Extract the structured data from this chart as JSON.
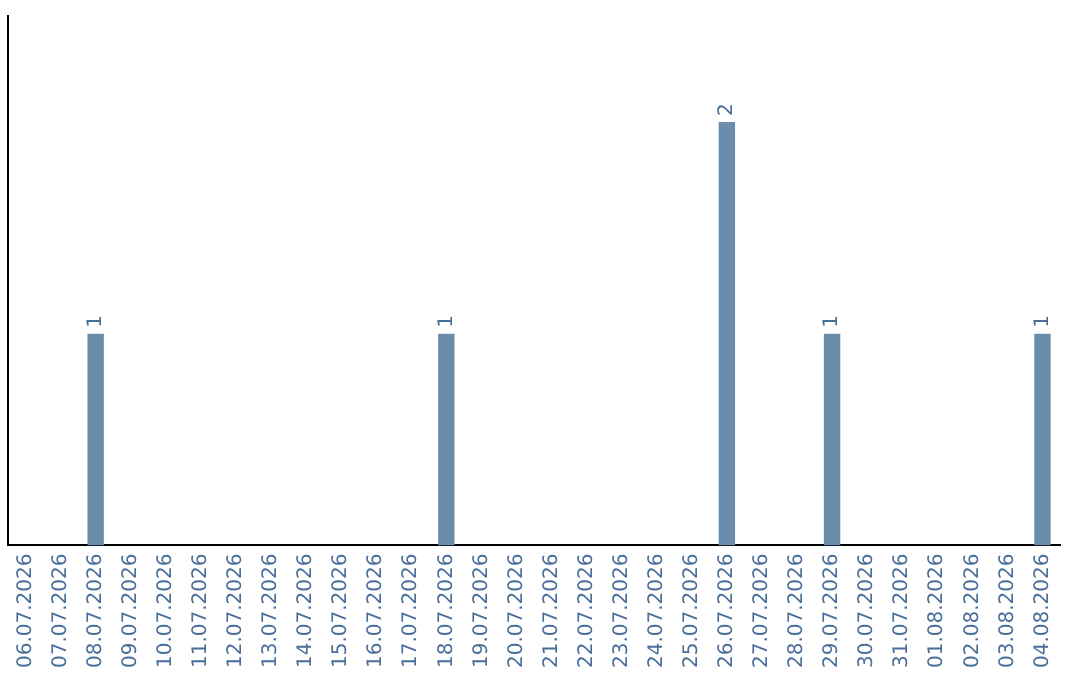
{
  "chart_data": {
    "type": "bar",
    "categories": [
      "06.07.2026",
      "07.07.2026",
      "08.07.2026",
      "09.07.2026",
      "10.07.2026",
      "11.07.2026",
      "12.07.2026",
      "13.07.2026",
      "14.07.2026",
      "15.07.2026",
      "16.07.2026",
      "17.07.2026",
      "18.07.2026",
      "19.07.2026",
      "20.07.2026",
      "21.07.2026",
      "22.07.2026",
      "23.07.2026",
      "24.07.2026",
      "25.07.2026",
      "26.07.2026",
      "27.07.2026",
      "28.07.2026",
      "29.07.2026",
      "30.07.2026",
      "31.07.2026",
      "01.08.2026",
      "02.08.2026",
      "03.08.2026",
      "04.08.2026"
    ],
    "values": [
      0,
      0,
      1,
      0,
      0,
      0,
      0,
      0,
      0,
      0,
      0,
      0,
      1,
      0,
      0,
      0,
      0,
      0,
      0,
      0,
      2,
      0,
      0,
      1,
      0,
      0,
      0,
      0,
      0,
      1
    ],
    "value_labels": [
      null,
      null,
      "1",
      null,
      null,
      null,
      null,
      null,
      null,
      null,
      null,
      null,
      "1",
      null,
      null,
      null,
      null,
      null,
      null,
      null,
      "2",
      null,
      null,
      "1",
      null,
      null,
      null,
      null,
      null,
      "1"
    ],
    "color": "#6b8cab",
    "grid": false,
    "legend": false,
    "tick_labels": "x"
  }
}
